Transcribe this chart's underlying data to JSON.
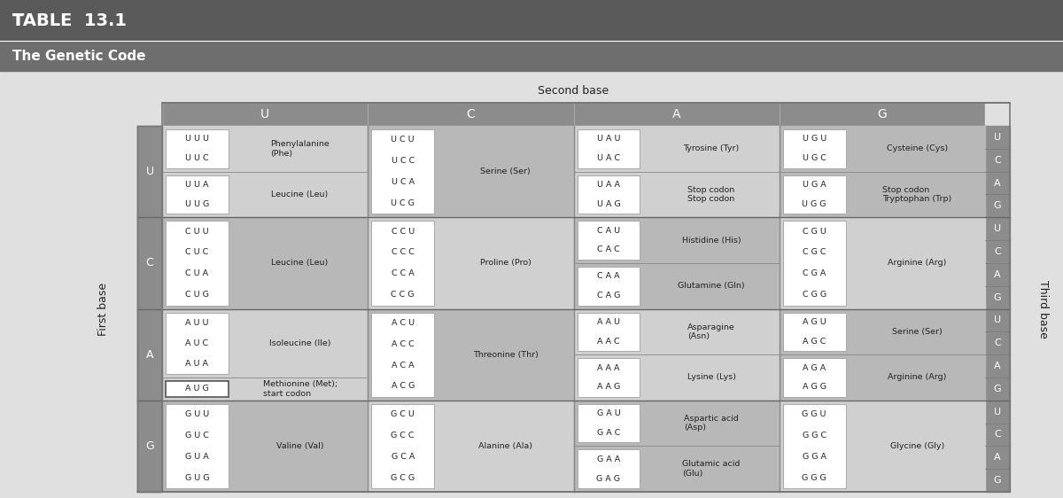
{
  "title_small": "TABLE ",
  "title_large": "13.1",
  "subtitle": "The Genetic Code",
  "second_base_label": "Second base",
  "first_base_label": "First base",
  "third_base_label": "Third base",
  "col_headers": [
    "U",
    "C",
    "A",
    "G"
  ],
  "row_headers": [
    "U",
    "C",
    "A",
    "G"
  ],
  "third_base_labels": [
    "U",
    "C",
    "A",
    "G"
  ],
  "title_bg": "#5a5a5a",
  "subtitle_bg": "#6e6e6e",
  "header_bg": "#8c8c8c",
  "cell_bg_light": "#d0d0d0",
  "cell_bg_dark": "#b8b8b8",
  "row_header_bg": "#8c8c8c",
  "fig_bg": "#e0e0e0",
  "codon_box_bg": "#ffffff",
  "codon_box_edge": "#aaaaaa",
  "text_dark": "#222222",
  "text_white": "#ffffff",
  "cells": [
    [
      {
        "groups": [
          {
            "codons": [
              "U U U",
              "U U C"
            ],
            "amino": "Phenylalanine\n(Phe)"
          },
          {
            "codons": [
              "U U A",
              "U U G"
            ],
            "amino": "Leucine (Leu)"
          }
        ]
      },
      {
        "groups": [
          {
            "codons": [
              "U C U",
              "U C C",
              "U C A",
              "U C G"
            ],
            "amino": "Serine (Ser)"
          }
        ]
      },
      {
        "groups": [
          {
            "codons": [
              "U A U",
              "U A C"
            ],
            "amino": "Tyrosine (Tyr)"
          },
          {
            "codons": [
              "U A A",
              "U A G"
            ],
            "amino": "Stop codon\nStop codon"
          }
        ]
      },
      {
        "groups": [
          {
            "codons": [
              "U G U",
              "U G C"
            ],
            "amino": "Cysteine (Cys)"
          },
          {
            "codons": [
              "U G A",
              "U G G"
            ],
            "amino": "Stop codon\nTryptophan (Trp)"
          }
        ]
      }
    ],
    [
      {
        "groups": [
          {
            "codons": [
              "C U U",
              "C U C",
              "C U A",
              "C U G"
            ],
            "amino": "Leucine (Leu)"
          }
        ]
      },
      {
        "groups": [
          {
            "codons": [
              "C C U",
              "C C C",
              "C C A",
              "C C G"
            ],
            "amino": "Proline (Pro)"
          }
        ]
      },
      {
        "groups": [
          {
            "codons": [
              "C A U",
              "C A C"
            ],
            "amino": "Histidine (His)"
          },
          {
            "codons": [
              "C A A",
              "C A G"
            ],
            "amino": "Glutamine (Gln)"
          }
        ]
      },
      {
        "groups": [
          {
            "codons": [
              "C G U",
              "C G C",
              "C G A",
              "C G G"
            ],
            "amino": "Arginine (Arg)"
          }
        ]
      }
    ],
    [
      {
        "groups": [
          {
            "codons": [
              "A U U",
              "A U C",
              "A U A"
            ],
            "amino": "Isoleucine (Ile)"
          },
          {
            "codons": [
              "A U G"
            ],
            "amino": "Methionine (Met);\nstart codon",
            "aug": true
          }
        ]
      },
      {
        "groups": [
          {
            "codons": [
              "A C U",
              "A C C",
              "A C A",
              "A C G"
            ],
            "amino": "Threonine (Thr)"
          }
        ]
      },
      {
        "groups": [
          {
            "codons": [
              "A A U",
              "A A C"
            ],
            "amino": "Asparagine\n(Asn)"
          },
          {
            "codons": [
              "A A A",
              "A A G"
            ],
            "amino": "Lysine (Lys)"
          }
        ]
      },
      {
        "groups": [
          {
            "codons": [
              "A G U",
              "A G C"
            ],
            "amino": "Serine (Ser)"
          },
          {
            "codons": [
              "A G A",
              "A G G"
            ],
            "amino": "Arginine (Arg)"
          }
        ]
      }
    ],
    [
      {
        "groups": [
          {
            "codons": [
              "G U U",
              "G U C",
              "G U A",
              "G U G"
            ],
            "amino": "Valine (Val)"
          }
        ]
      },
      {
        "groups": [
          {
            "codons": [
              "G C U",
              "G C C",
              "G C A",
              "G C G"
            ],
            "amino": "Alanine (Ala)"
          }
        ]
      },
      {
        "groups": [
          {
            "codons": [
              "G A U",
              "G A C"
            ],
            "amino": "Aspartic acid\n(Asp)"
          },
          {
            "codons": [
              "G A A",
              "G A G"
            ],
            "amino": "Glutamic acid\n(Glu)"
          }
        ]
      },
      {
        "groups": [
          {
            "codons": [
              "G G U",
              "G G C",
              "G G A",
              "G G G"
            ],
            "amino": "Glycine (Gly)"
          }
        ]
      }
    ]
  ]
}
